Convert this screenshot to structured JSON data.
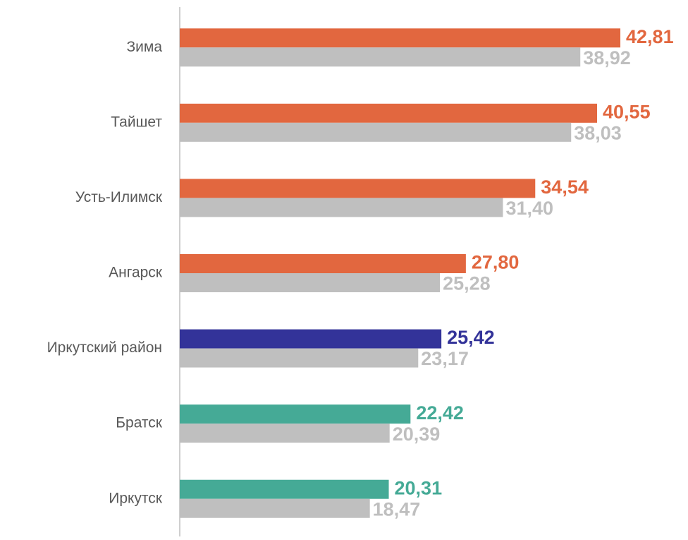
{
  "chart_data": {
    "type": "hbar",
    "categories": [
      "Зима",
      "Тайшет",
      "Усть-Илимск",
      "Ангарск",
      "Иркутский район",
      "Братск",
      "Иркутск"
    ],
    "series": [
      {
        "colors": [
          "#e2673f",
          "#e2673f",
          "#e2673f",
          "#e2673f",
          "#333399",
          "#45aa96",
          "#45aa96"
        ],
        "values": [
          42.81,
          40.55,
          34.54,
          27.8,
          25.42,
          22.42,
          20.31
        ],
        "value_labels": [
          "42,81",
          "40,55",
          "34,54",
          "27,80",
          "25,42",
          "22,42",
          "20,31"
        ]
      },
      {
        "color": "#bfbfbf",
        "values": [
          38.92,
          38.03,
          31.4,
          25.28,
          23.17,
          20.39,
          18.47
        ],
        "value_labels": [
          "38,92",
          "38,03",
          "31,40",
          "25,28",
          "23,17",
          "20,39",
          "18,47"
        ]
      }
    ],
    "xlim": [
      0,
      50
    ]
  }
}
